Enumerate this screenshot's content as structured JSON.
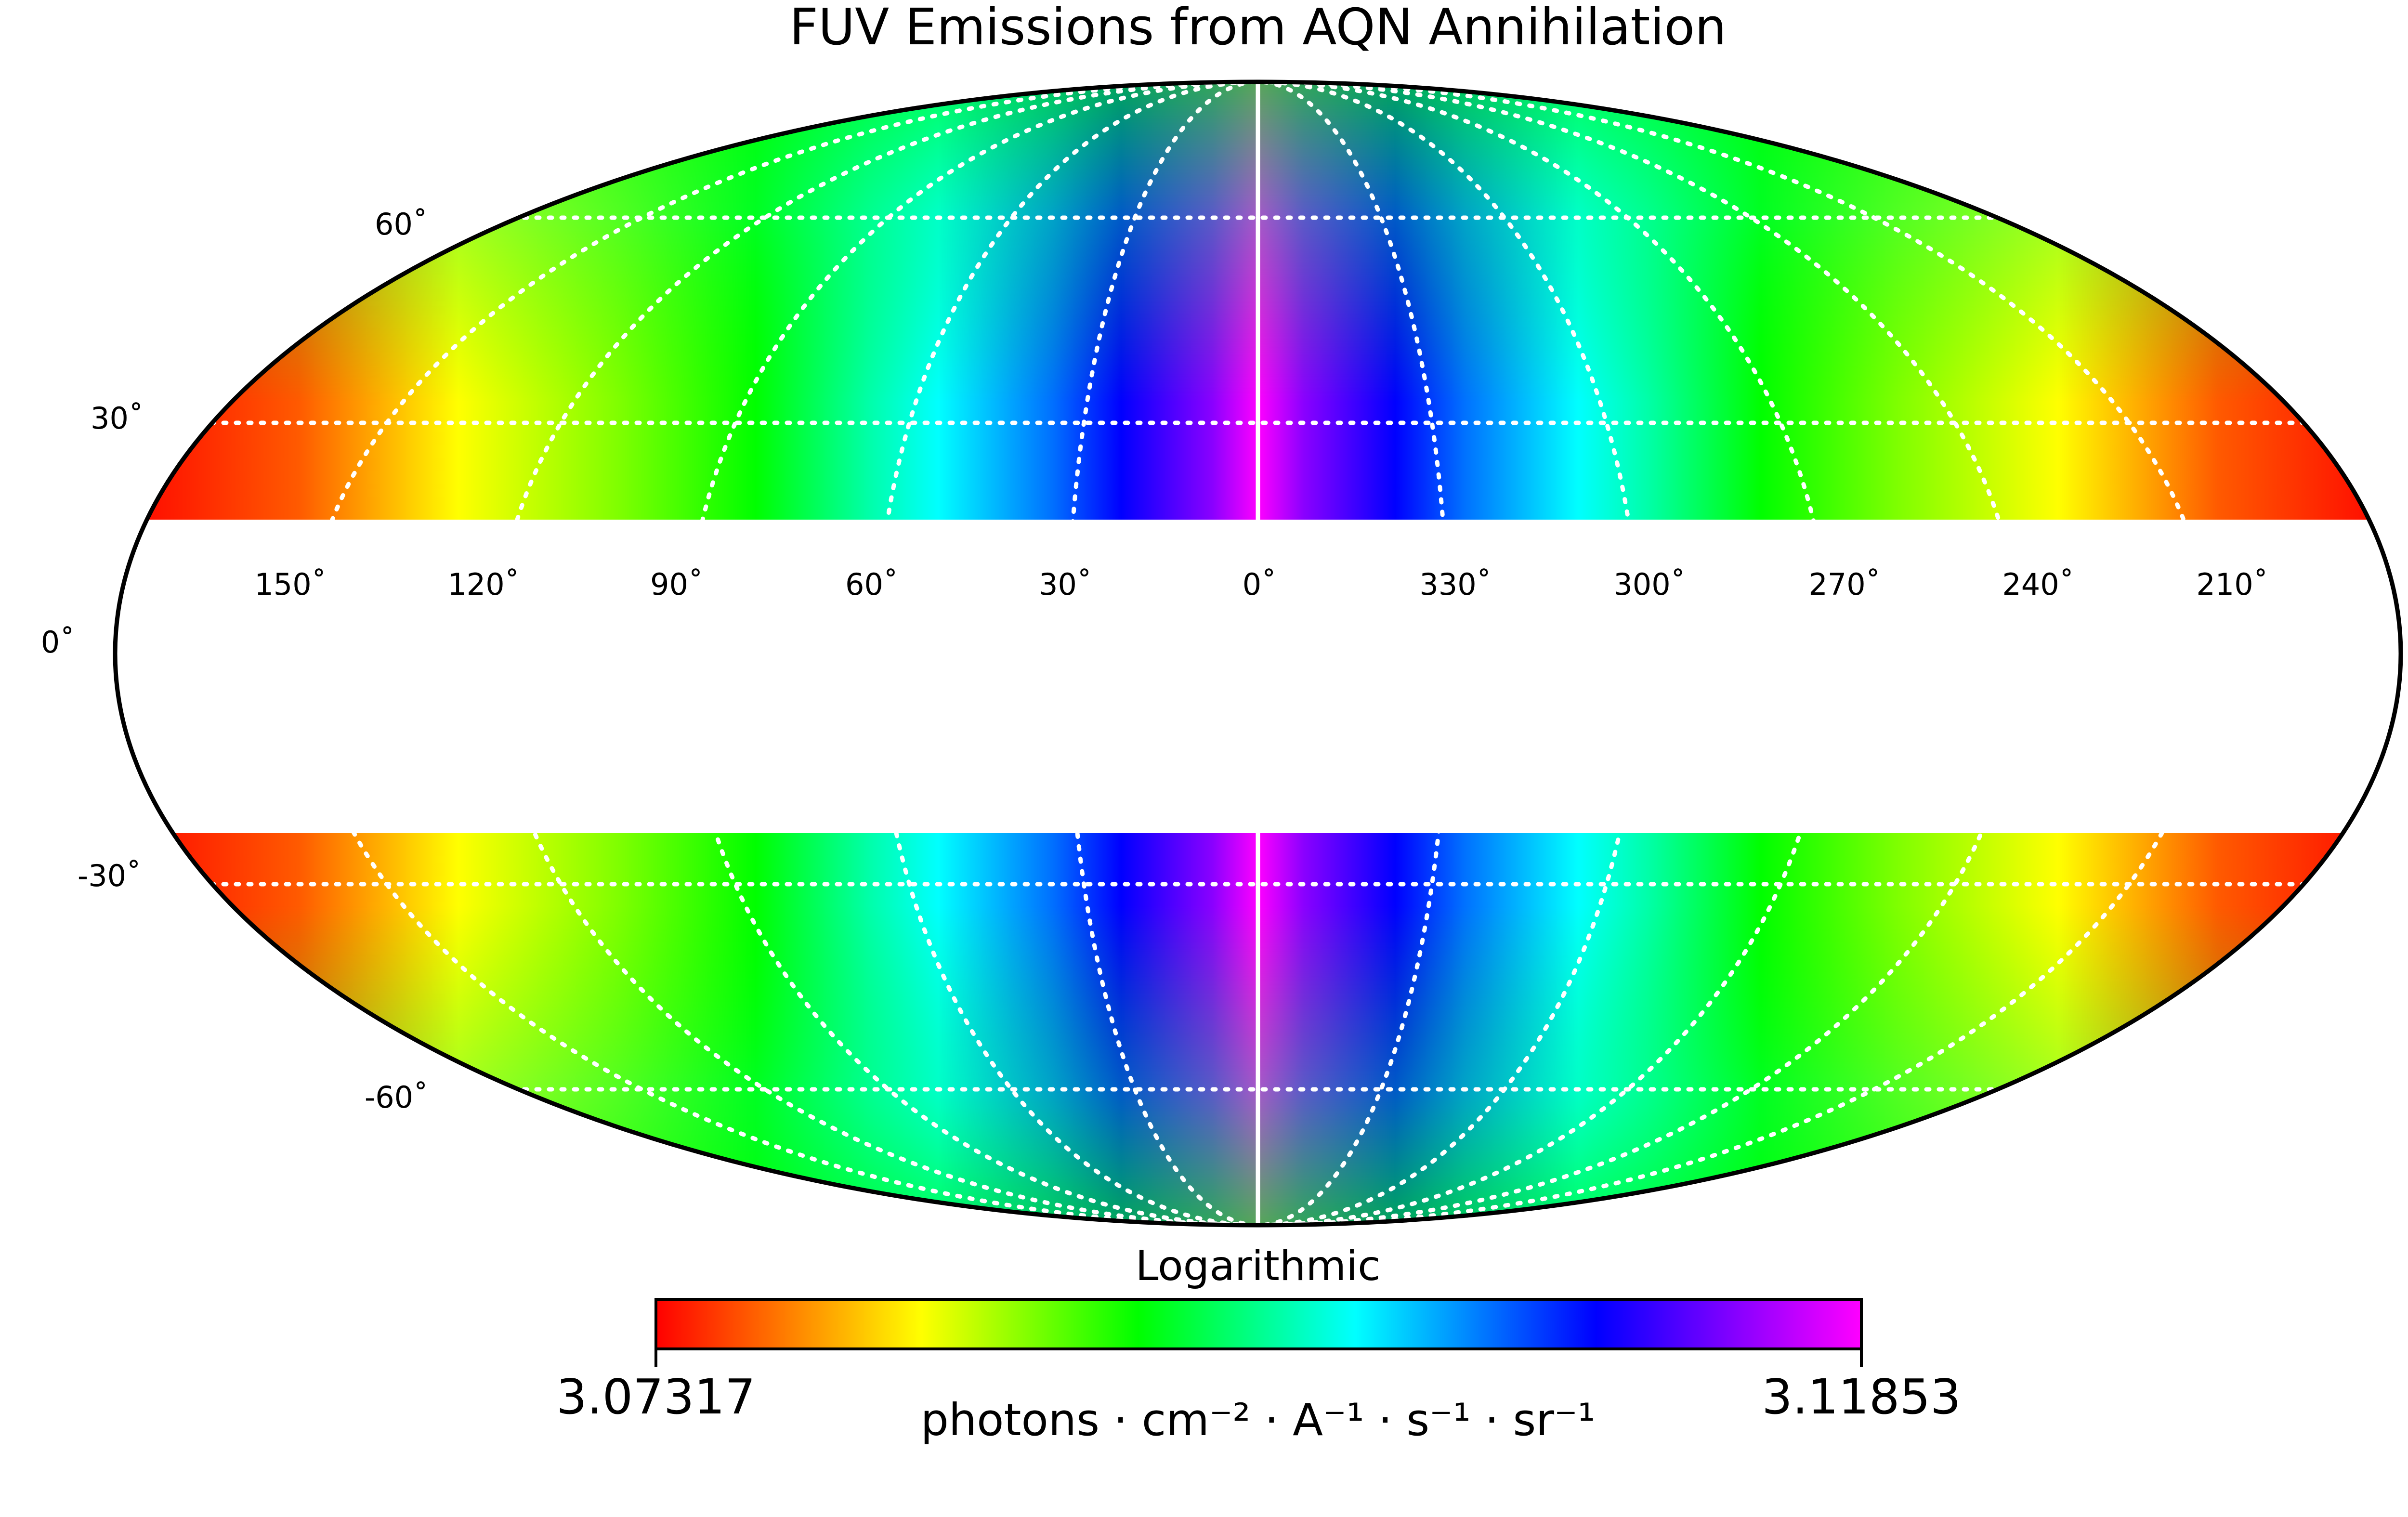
{
  "title": "FUV Emissions from AQN Annihilation",
  "projection": "mollweide",
  "graticule": {
    "longitude_labels": [
      "150˚",
      "120˚",
      "90˚",
      "60˚",
      "30˚",
      "0˚",
      "330˚",
      "300˚",
      "270˚",
      "240˚",
      "210˚"
    ],
    "latitude_labels": [
      "60˚",
      "30˚",
      "0˚",
      "-30˚",
      "-60˚"
    ],
    "color": "#ffffff",
    "style": "dotted"
  },
  "masked_band": "Galactic plane masked (white band)",
  "colorbar": {
    "scale_label": "Logarithmic",
    "min_label": "3.07317",
    "max_label": "3.11853",
    "unit_label": "photons · cm⁻² · A⁻¹ · s⁻¹ · sr⁻¹",
    "colormap": "gist_rainbow_r",
    "colors": [
      "#ff0000",
      "#ffff00",
      "#00ff00",
      "#00ffff",
      "#0000ff",
      "#ff00ff"
    ]
  }
}
